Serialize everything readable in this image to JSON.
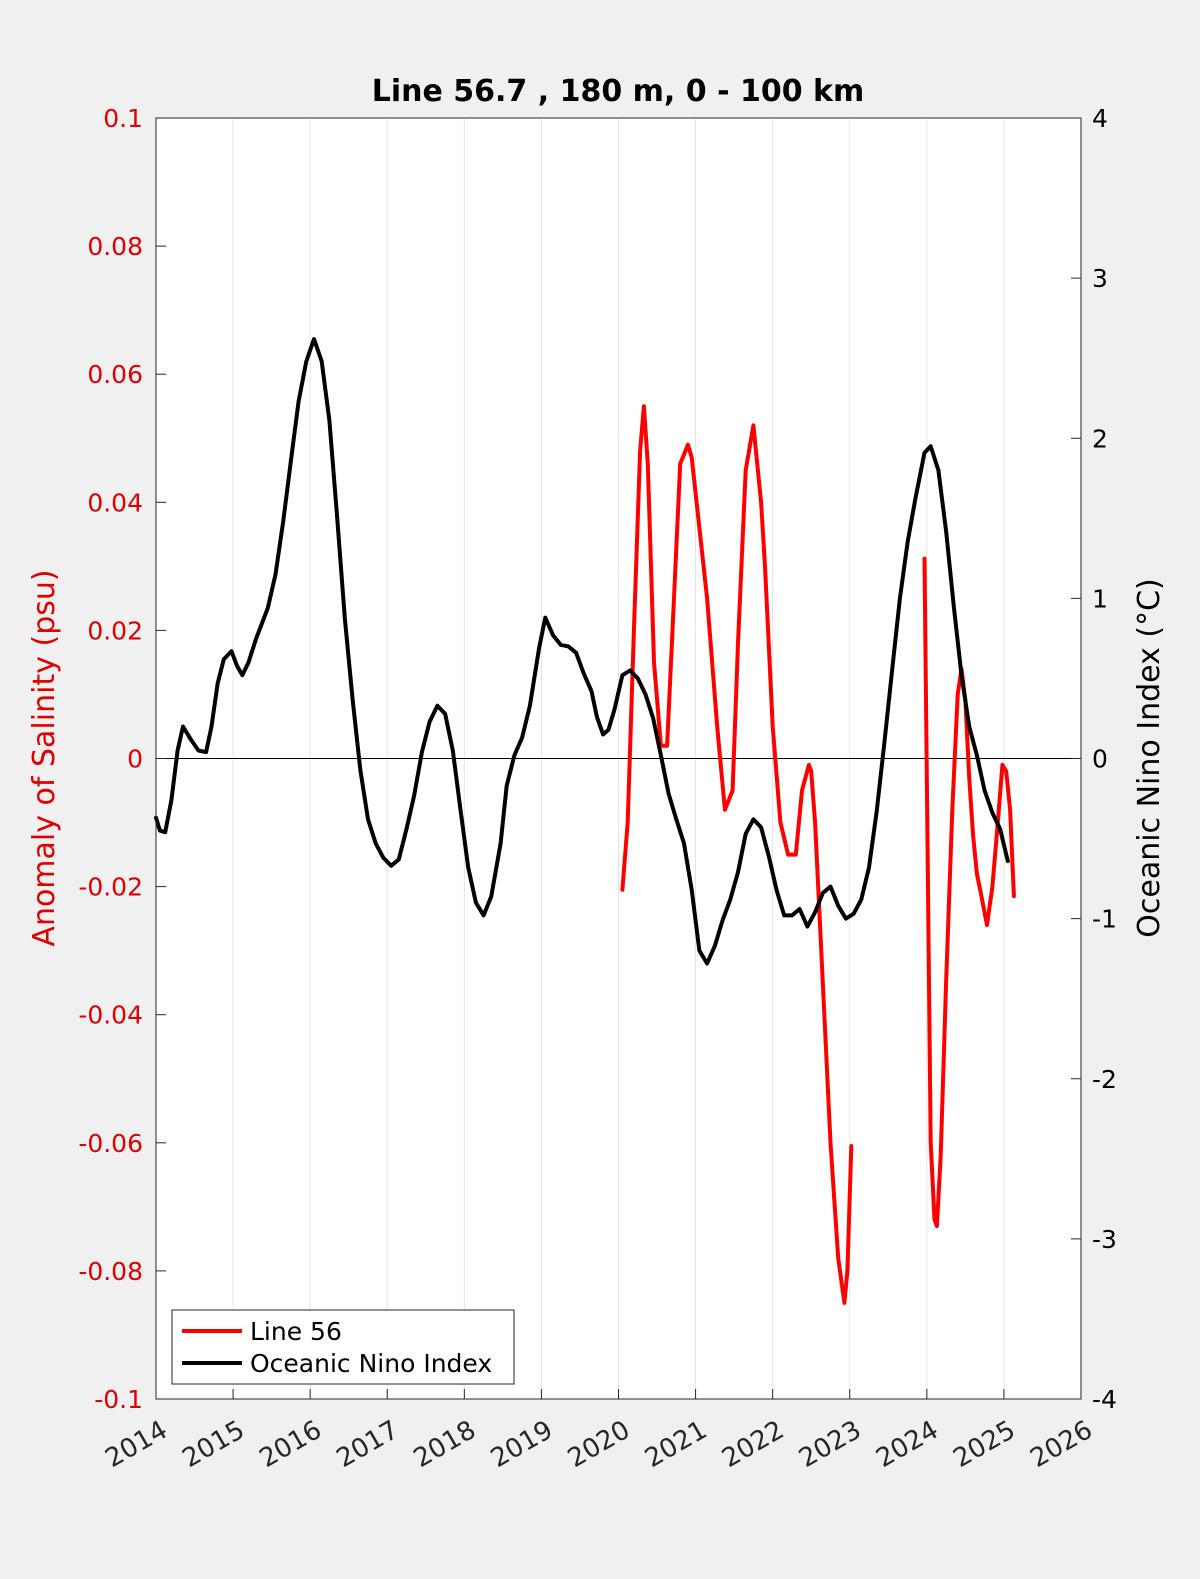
{
  "chart_data": {
    "type": "line",
    "title": "Line 56.7 , 180 m, 0 - 100 km",
    "ylabel": "Anomaly of Salinity (psu)",
    "ylabel_right": "Oceanic Nino Index (°C)",
    "xlim": [
      2014,
      2026
    ],
    "ylim": [
      -0.1,
      0.1
    ],
    "ylim_right": [
      -4,
      4
    ],
    "x_ticks": [
      "2014",
      "2015",
      "2016",
      "2017",
      "2018",
      "2019",
      "2020",
      "2021",
      "2022",
      "2023",
      "2024",
      "2025",
      "2026"
    ],
    "y_ticks": [
      "-0.1",
      "-0.08",
      "-0.06",
      "-0.04",
      "-0.02",
      "0",
      "0.02",
      "0.04",
      "0.06",
      "0.08",
      "0.1"
    ],
    "y_ticks_right": [
      "-4",
      "-3",
      "-2",
      "-1",
      "0",
      "1",
      "2",
      "3",
      "4"
    ],
    "grid": "vertical",
    "legend_position": "bottom-left",
    "colors": {
      "axis_left": "#e00000",
      "salinity": "#ff0000",
      "oni": "#000000",
      "background": "#f0f0f0",
      "plot_bg": "#ffffff"
    },
    "series": [
      {
        "name": "Line 56",
        "axis": "left",
        "color": "#ff0000",
        "segments": [
          {
            "x": [
              2020.05,
              2020.12,
              2020.2,
              2020.28,
              2020.33,
              2020.38,
              2020.46,
              2020.55,
              2020.63,
              2020.7,
              2020.8,
              2020.9,
              2020.95,
              2021.05,
              2021.15,
              2021.28,
              2021.38,
              2021.48,
              2021.55,
              2021.65,
              2021.75,
              2021.85,
              2021.9,
              2022.0,
              2022.1,
              2022.2,
              2022.3,
              2022.38,
              2022.47,
              2022.5,
              2022.55,
              2022.65,
              2022.75,
              2022.85,
              2022.93,
              2022.97,
              2023.02
            ],
            "y": [
              -0.0205,
              -0.01,
              0.02,
              0.048,
              0.055,
              0.046,
              0.015,
              0.002,
              0.002,
              0.02,
              0.046,
              0.049,
              0.047,
              0.036,
              0.025,
              0.005,
              -0.008,
              -0.005,
              0.018,
              0.045,
              0.052,
              0.04,
              0.03,
              0.005,
              -0.01,
              -0.015,
              -0.015,
              -0.005,
              -0.001,
              -0.002,
              -0.01,
              -0.035,
              -0.06,
              -0.078,
              -0.085,
              -0.08,
              -0.0605
            ]
          },
          {
            "x": [
              2023.97,
              2024.05,
              2024.1,
              2024.13,
              2024.18,
              2024.25,
              2024.33,
              2024.4,
              2024.45,
              2024.5,
              2024.55,
              2024.6,
              2024.65,
              2024.7,
              2024.78,
              2024.85,
              2024.92,
              2024.98,
              2025.03,
              2025.08,
              2025.13
            ],
            "y": [
              0.0312,
              -0.06,
              -0.072,
              -0.073,
              -0.062,
              -0.035,
              -0.008,
              0.01,
              0.014,
              0.009,
              -0.003,
              -0.012,
              -0.018,
              -0.021,
              -0.026,
              -0.02,
              -0.01,
              -0.001,
              -0.002,
              -0.008,
              -0.0215
            ]
          }
        ]
      },
      {
        "name": "Oceanic Nino Index",
        "axis": "right",
        "color": "#000000",
        "x": [
          2014.0,
          2014.05,
          2014.12,
          2014.2,
          2014.28,
          2014.35,
          2014.45,
          2014.55,
          2014.65,
          2014.72,
          2014.8,
          2014.88,
          2014.98,
          2015.05,
          2015.12,
          2015.2,
          2015.3,
          2015.45,
          2015.55,
          2015.65,
          2015.75,
          2015.85,
          2015.95,
          2016.05,
          2016.15,
          2016.25,
          2016.35,
          2016.45,
          2016.55,
          2016.65,
          2016.75,
          2016.85,
          2016.95,
          2017.05,
          2017.15,
          2017.25,
          2017.35,
          2017.45,
          2017.55,
          2017.65,
          2017.75,
          2017.85,
          2017.95,
          2018.05,
          2018.15,
          2018.25,
          2018.35,
          2018.47,
          2018.55,
          2018.65,
          2018.75,
          2018.85,
          2018.97,
          2019.05,
          2019.15,
          2019.25,
          2019.35,
          2019.45,
          2019.55,
          2019.65,
          2019.72,
          2019.8,
          2019.87,
          2019.95,
          2020.05,
          2020.15,
          2020.25,
          2020.35,
          2020.45,
          2020.55,
          2020.65,
          2020.75,
          2020.85,
          2020.95,
          2021.05,
          2021.15,
          2021.25,
          2021.35,
          2021.45,
          2021.55,
          2021.65,
          2021.75,
          2021.85,
          2021.95,
          2022.05,
          2022.15,
          2022.25,
          2022.35,
          2022.45,
          2022.55,
          2022.65,
          2022.75,
          2022.85,
          2022.95,
          2023.05,
          2023.15,
          2023.25,
          2023.35,
          2023.45,
          2023.55,
          2023.65,
          2023.75,
          2023.85,
          2023.97,
          2024.05,
          2024.15,
          2024.25,
          2024.35,
          2024.45,
          2024.55,
          2024.65,
          2024.75,
          2024.85,
          2024.95,
          2025.05
        ],
        "y": [
          -0.37,
          -0.45,
          -0.46,
          -0.26,
          0.05,
          0.2,
          0.12,
          0.05,
          0.04,
          0.2,
          0.47,
          0.62,
          0.67,
          0.58,
          0.52,
          0.6,
          0.75,
          0.94,
          1.15,
          1.48,
          1.86,
          2.23,
          2.48,
          2.62,
          2.48,
          2.11,
          1.51,
          0.87,
          0.37,
          -0.07,
          -0.38,
          -0.53,
          -0.62,
          -0.67,
          -0.63,
          -0.44,
          -0.23,
          0.04,
          0.23,
          0.33,
          0.28,
          0.05,
          -0.32,
          -0.68,
          -0.9,
          -0.98,
          -0.86,
          -0.53,
          -0.17,
          0.02,
          0.13,
          0.33,
          0.69,
          0.88,
          0.77,
          0.71,
          0.7,
          0.66,
          0.53,
          0.42,
          0.26,
          0.15,
          0.18,
          0.31,
          0.52,
          0.55,
          0.5,
          0.4,
          0.25,
          0.02,
          -0.22,
          -0.38,
          -0.53,
          -0.82,
          -1.2,
          -1.28,
          -1.17,
          -1.01,
          -0.88,
          -0.71,
          -0.47,
          -0.38,
          -0.43,
          -0.61,
          -0.82,
          -0.98,
          -0.98,
          -0.94,
          -1.05,
          -0.96,
          -0.84,
          -0.8,
          -0.92,
          -1.0,
          -0.97,
          -0.88,
          -0.68,
          -0.33,
          0.1,
          0.55,
          1.0,
          1.35,
          1.62,
          1.91,
          1.95,
          1.8,
          1.42,
          0.95,
          0.52,
          0.2,
          0.02,
          -0.2,
          -0.34,
          -0.44,
          -0.64
        ]
      }
    ]
  }
}
